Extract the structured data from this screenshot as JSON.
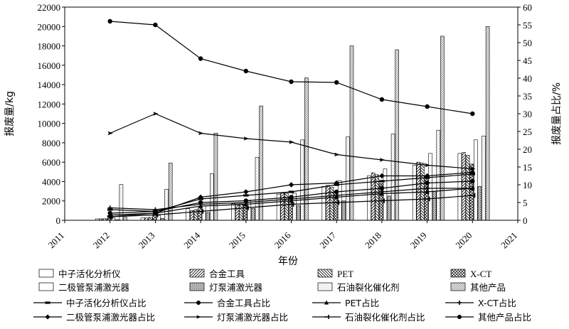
{
  "chart_data": {
    "type": "bar",
    "title": "",
    "xlabel": "年份",
    "ylabel": "报废量/kg",
    "y2label": "报废量占比/%",
    "categories": [
      "2012",
      "2013",
      "2014",
      "2015",
      "2016",
      "2017",
      "2018",
      "2019",
      "2020"
    ],
    "x_ticks": [
      "2011",
      "2012",
      "2013",
      "2014",
      "2015",
      "2016",
      "2017",
      "2018",
      "2019",
      "2020",
      "2021"
    ],
    "ylim": [
      0,
      22000
    ],
    "y_ticks": [
      "0",
      "2000",
      "4000",
      "6000",
      "8000",
      "10000",
      "12000",
      "14000",
      "16000",
      "18000",
      "20000",
      "22000"
    ],
    "y2lim": [
      0,
      60
    ],
    "y2_ticks": [
      "0",
      "5",
      "10",
      "15",
      "20",
      "25",
      "30",
      "35",
      "40",
      "45",
      "50",
      "55",
      "60"
    ],
    "bar_series": [
      {
        "name": "中子活化分析仪",
        "pattern": "white",
        "values": [
          150,
          250,
          1200,
          1700,
          2700,
          3500,
          4600,
          5700,
          6900
        ]
      },
      {
        "name": "合金工具",
        "pattern": "diag-right",
        "values": [
          150,
          250,
          1000,
          1800,
          2800,
          3600,
          4900,
          6000,
          7000
        ]
      },
      {
        "name": "PET",
        "pattern": "diag-left",
        "values": [
          160,
          300,
          1100,
          1700,
          2800,
          3400,
          4700,
          5900,
          6700
        ]
      },
      {
        "name": "X-CT",
        "pattern": "crosshatch",
        "values": [
          500,
          700,
          1300,
          1700,
          2400,
          3000,
          3800,
          4600,
          5800
        ]
      },
      {
        "name": "二极管泵浦激光器",
        "pattern": "white",
        "values": [
          250,
          500,
          1500,
          2000,
          2800,
          4100,
          5300,
          6900,
          8300
        ]
      },
      {
        "name": "灯泵浦激光器",
        "pattern": "dense-dots",
        "values": [
          50,
          200,
          800,
          1200,
          1500,
          2000,
          2500,
          3000,
          3500
        ]
      },
      {
        "name": "石油裂化催化剂",
        "pattern": "light-dots",
        "values": [
          3700,
          3200,
          4800,
          6500,
          8300,
          8600,
          8900,
          9300,
          8700
        ]
      },
      {
        "name": "其他产品",
        "pattern": "speckle",
        "values": [
          300,
          5900,
          9000,
          11800,
          14700,
          18000,
          17600,
          19000,
          20000
        ]
      }
    ],
    "line_series": [
      {
        "name": "中子活化分析仪占比",
        "marker": "dash",
        "values": [
          3.0,
          2.5,
          6.0,
          7.0,
          8.0,
          10.0,
          11.0,
          12.0,
          13.0
        ]
      },
      {
        "name": "合金工具占比",
        "marker": "circle",
        "values": [
          2.0,
          2.5,
          5.0,
          5.5,
          6.5,
          8.0,
          9.0,
          10.5,
          11.0
        ]
      },
      {
        "name": "PET占比",
        "marker": "triangle",
        "values": [
          1.5,
          2.0,
          4.0,
          4.5,
          5.5,
          6.5,
          7.5,
          8.0,
          9.0
        ]
      },
      {
        "name": "X-CT占比",
        "marker": "plus",
        "values": [
          3.5,
          3.0,
          4.5,
          5.0,
          6.0,
          7.0,
          8.0,
          9.0,
          9.0
        ]
      },
      {
        "name": "二极管泵浦激光器占比",
        "marker": "diamond",
        "values": [
          1.0,
          2.0,
          6.5,
          8.0,
          10.0,
          10.5,
          12.5,
          12.5,
          13.5
        ]
      },
      {
        "name": "灯泵浦激光器占比",
        "marker": "arrow",
        "values": [
          24.5,
          30.0,
          24.5,
          23.0,
          22.0,
          18.5,
          17.0,
          15.5,
          14.5
        ]
      },
      {
        "name": "石油裂化催化剂占比",
        "marker": "tick",
        "values": [
          1.0,
          1.5,
          2.5,
          3.5,
          4.5,
          5.0,
          5.5,
          6.0,
          7.0
        ]
      },
      {
        "name": "其他产品占比",
        "marker": "circle",
        "values": [
          56.0,
          55.0,
          45.5,
          42.0,
          39.0,
          38.8,
          34.0,
          32.0,
          30.0
        ]
      }
    ],
    "legend": {
      "placement": "bottom",
      "columns": 4,
      "entries": [
        {
          "label": "中子活化分析仪",
          "kind": "bar",
          "pattern": "white",
          "latin": false
        },
        {
          "label": "合金工具",
          "kind": "bar",
          "pattern": "diag-right",
          "latin": false
        },
        {
          "label": "PET",
          "kind": "bar",
          "pattern": "diag-left",
          "latin": true
        },
        {
          "label": "X-CT",
          "kind": "bar",
          "pattern": "crosshatch",
          "latin": true
        },
        {
          "label": "二极管泵浦激光器",
          "kind": "bar",
          "pattern": "white",
          "latin": false
        },
        {
          "label": "灯泵浦激光器",
          "kind": "bar",
          "pattern": "dense-dots",
          "latin": false
        },
        {
          "label": "石油裂化催化剂",
          "kind": "bar",
          "pattern": "light-dots",
          "latin": false
        },
        {
          "label": "其他产品",
          "kind": "bar",
          "pattern": "speckle",
          "latin": false
        },
        {
          "label": "中子活化分析仪占比",
          "kind": "line",
          "marker": "dash",
          "latin": false
        },
        {
          "label": "合金工具占比",
          "kind": "line",
          "marker": "circle",
          "latin": false
        },
        {
          "label": "PET占比",
          "kind": "line",
          "marker": "triangle",
          "latin": false
        },
        {
          "label": "X-CT占比",
          "kind": "line",
          "marker": "plus",
          "latin": false
        },
        {
          "label": "二极管泵浦激光器占比",
          "kind": "line",
          "marker": "diamond",
          "latin": false
        },
        {
          "label": "灯泵浦激光器占比",
          "kind": "line",
          "marker": "arrow",
          "latin": false
        },
        {
          "label": "石油裂化催化剂占比",
          "kind": "line",
          "marker": "tick",
          "latin": false
        },
        {
          "label": "其他产品占比",
          "kind": "line",
          "marker": "circle",
          "latin": false
        }
      ]
    },
    "grid": false
  }
}
